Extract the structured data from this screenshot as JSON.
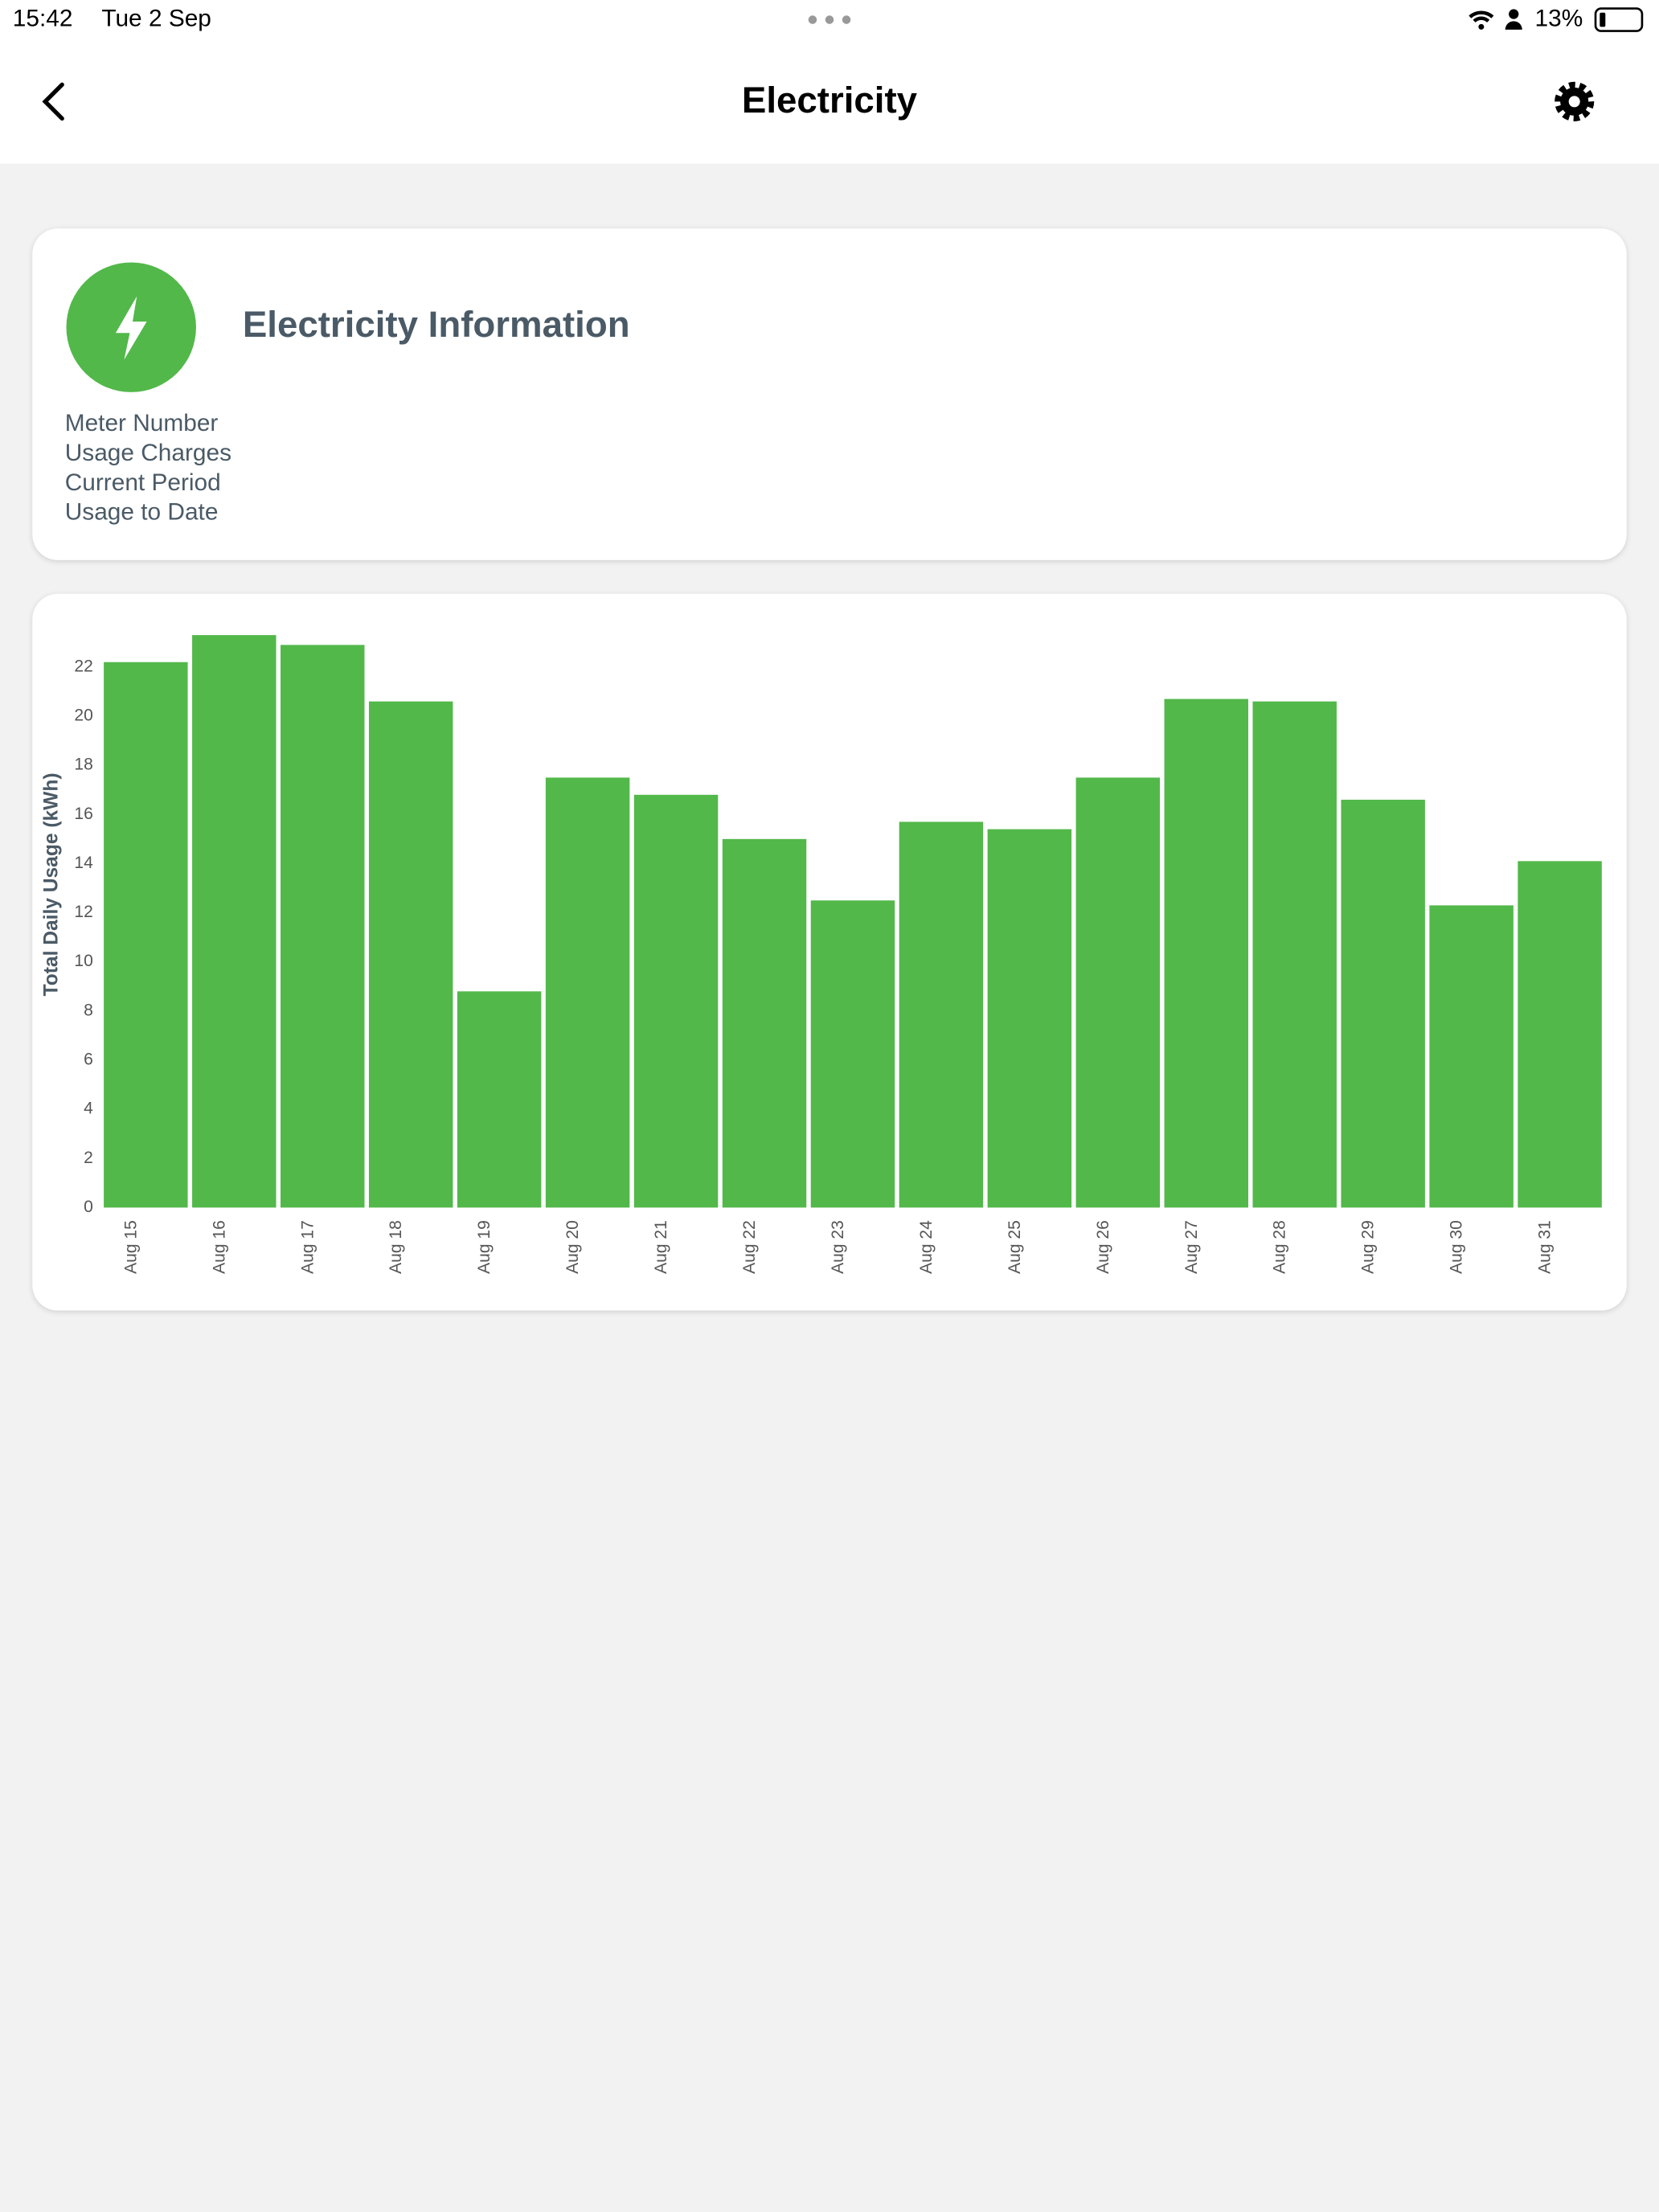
{
  "status_bar": {
    "time": "15:42",
    "date": "Tue 2 Sep",
    "battery": "13%"
  },
  "header": {
    "title": "Electricity"
  },
  "info_card": {
    "title": "Electricity Information",
    "labels": [
      "Meter Number",
      "Usage Charges",
      "Current Period",
      "Usage to Date"
    ]
  },
  "chart_data": {
    "type": "bar",
    "y_label": "Total Daily Usage (kWh)",
    "categories": [
      "Aug 15",
      "Aug 16",
      "Aug 17",
      "Aug 18",
      "Aug 19",
      "Aug 20",
      "Aug 21",
      "Aug 22",
      "Aug 23",
      "Aug 24",
      "Aug 25",
      "Aug 26",
      "Aug 27",
      "Aug 28",
      "Aug 29",
      "Aug 30",
      "Aug 31"
    ],
    "values": [
      22.2,
      23.3,
      22.9,
      20.6,
      8.8,
      17.5,
      16.8,
      15.0,
      12.5,
      15.7,
      15.4,
      17.5,
      20.7,
      20.6,
      16.6,
      12.3,
      14.1
    ],
    "color": "#52b84a",
    "ylim": [
      0,
      24
    ],
    "yticks": [
      0,
      2,
      4,
      6,
      8,
      10,
      12,
      14,
      16,
      18,
      20,
      22
    ],
    "grid": false
  }
}
